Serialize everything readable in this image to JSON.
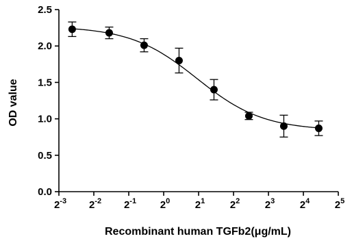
{
  "chart_data": {
    "type": "scatter",
    "title": "",
    "xlabel": "Recombinant human TGFb2(μg/mL)",
    "ylabel": "OD value",
    "x_scale": "log2",
    "x_tick_base": "2",
    "x_tick_exponents": [
      "-3",
      "-2",
      "-1",
      "0",
      "1",
      "2",
      "3",
      "4",
      "5"
    ],
    "x_ticks_log2": [
      -3,
      -2,
      -1,
      0,
      1,
      2,
      3,
      4,
      5
    ],
    "xlim_log2": [
      -3,
      5
    ],
    "y_ticks": [
      "0.0",
      "0.5",
      "1.0",
      "1.5",
      "2.0",
      "2.5"
    ],
    "ylim": [
      0,
      2.5
    ],
    "grid": false,
    "legend": "none",
    "fit_curve": true,
    "series": [
      {
        "x_log2": [
          -2.62,
          -1.56,
          -0.56,
          0.44,
          1.44,
          2.44,
          3.44,
          4.44
        ],
        "y": [
          2.23,
          2.18,
          2.01,
          1.8,
          1.4,
          1.04,
          0.9,
          0.87
        ],
        "err": [
          0.1,
          0.08,
          0.09,
          0.17,
          0.14,
          0.05,
          0.15,
          0.1
        ]
      }
    ],
    "colors": {
      "marker": "#000000",
      "curve": "#000000",
      "axis": "#000000"
    }
  }
}
